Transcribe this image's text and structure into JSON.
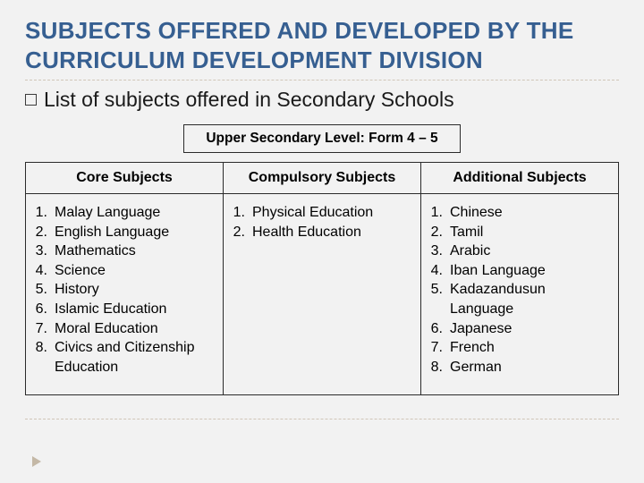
{
  "title": "SUBJECTS OFFERED AND DEVELOPED BY THE CURRICULUM DEVELOPMENT DIVISION",
  "subtitle": "List of subjects offered in Secondary Schools",
  "level_label": "Upper Secondary Level: Form 4 – 5",
  "columns": [
    {
      "header": "Core Subjects",
      "items": [
        "Malay Language",
        "English Language",
        "Mathematics",
        "Science",
        "History",
        "Islamic Education",
        "Moral Education",
        "Civics and Citizenship Education"
      ]
    },
    {
      "header": "Compulsory Subjects",
      "items": [
        "Physical Education",
        "Health Education"
      ]
    },
    {
      "header": "Additional Subjects",
      "items": [
        "Chinese",
        "Tamil",
        "Arabic",
        "Iban Language",
        "Kadazandusun Language",
        "Japanese",
        "French",
        "German"
      ]
    }
  ],
  "colors": {
    "title": "#365f91",
    "bg": "#f2f2f2",
    "border": "#2b2b2b",
    "dash": "#d0c6b8",
    "arrow": "#c4b8a6"
  },
  "typography": {
    "title_fontsize": 26,
    "subtitle_fontsize": 23,
    "header_fontsize": 16,
    "body_fontsize": 16,
    "level_fontsize": 15.5
  }
}
